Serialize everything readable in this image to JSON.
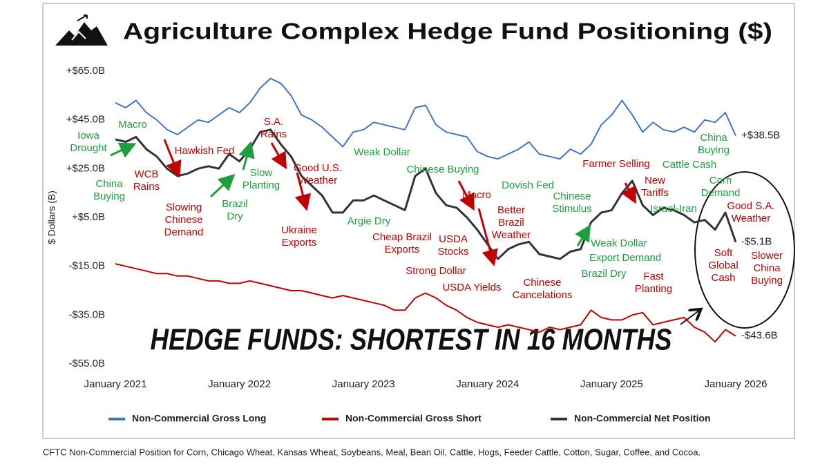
{
  "chart_data": {
    "type": "line",
    "title": "Agriculture Complex Hedge Fund Positioning ($)",
    "y_label": "$ Dollars (B)",
    "headline": "HEDGE FUNDS: SHORTEST IN 16 MONTHS",
    "footnote": "CFTC Non-Commercial Position for Corn, Chicago Wheat, Kansas Wheat, Soybeans, Meal, Bean Oil, Cattle, Hogs, Feeder Cattle, Cotton, Sugar, Coffee, and Cocoa.",
    "grid": false,
    "xlim": [
      "2021-01",
      "2026-01"
    ],
    "xticks": [
      {
        "value": "2021-01",
        "label": "January 2021"
      },
      {
        "value": "2022-01",
        "label": "January 2022"
      },
      {
        "value": "2023-01",
        "label": "January 2023"
      },
      {
        "value": "2024-01",
        "label": "January 2024"
      },
      {
        "value": "2025-01",
        "label": "January 2025"
      },
      {
        "value": "2026-01",
        "label": "January 2026"
      }
    ],
    "ylim": [
      -55,
      65
    ],
    "yticks": [
      {
        "value": 65,
        "label": "+$65.0B"
      },
      {
        "value": 45,
        "label": "+$45.0B"
      },
      {
        "value": 25,
        "label": "+$25.0B"
      },
      {
        "value": 5,
        "label": "+$5.0B"
      },
      {
        "value": -15,
        "label": "-$15.0B"
      },
      {
        "value": -35,
        "label": "-$35.0B"
      },
      {
        "value": -55,
        "label": "-$55.0B"
      }
    ],
    "x": [
      "2021-01",
      "2021-02",
      "2021-03",
      "2021-04",
      "2021-05",
      "2021-06",
      "2021-07",
      "2021-08",
      "2021-09",
      "2021-10",
      "2021-11",
      "2021-12",
      "2022-01",
      "2022-02",
      "2022-03",
      "2022-04",
      "2022-05",
      "2022-06",
      "2022-07",
      "2022-08",
      "2022-09",
      "2022-10",
      "2022-11",
      "2022-12",
      "2023-01",
      "2023-02",
      "2023-03",
      "2023-04",
      "2023-05",
      "2023-06",
      "2023-07",
      "2023-08",
      "2023-09",
      "2023-10",
      "2023-11",
      "2023-12",
      "2024-01",
      "2024-02",
      "2024-03",
      "2024-04",
      "2024-05",
      "2024-06",
      "2024-07",
      "2024-08",
      "2024-09",
      "2024-10",
      "2024-11",
      "2024-12",
      "2025-01",
      "2025-02",
      "2025-03",
      "2025-04",
      "2025-05",
      "2025-06",
      "2025-07",
      "2025-08",
      "2025-09",
      "2025-10",
      "2025-11",
      "2025-12",
      "2026-01"
    ],
    "series": [
      {
        "name": "Non-Commercial Gross Long",
        "color": "#4472c4",
        "values": [
          52,
          50,
          53,
          48,
          45,
          41,
          39,
          42,
          45,
          44,
          47,
          50,
          48,
          52,
          58,
          62,
          60,
          55,
          47,
          45,
          42,
          38,
          34,
          40,
          41,
          44,
          43,
          42,
          41,
          50,
          51,
          43,
          40,
          39,
          38,
          32,
          30,
          29,
          31,
          33,
          36,
          31,
          30,
          29,
          33,
          31,
          35,
          43,
          47,
          53,
          47,
          40,
          44,
          41,
          40,
          42,
          40,
          45,
          44,
          48,
          38.5
        ],
        "value_labels": [
          null,
          null,
          null,
          null,
          null,
          null,
          null,
          null,
          null,
          null,
          null,
          null,
          null,
          null,
          null,
          null,
          null,
          null,
          null,
          null,
          null,
          null,
          null,
          null,
          null,
          null,
          null,
          null,
          null,
          null,
          null,
          null,
          null,
          null,
          null,
          null,
          null,
          null,
          null,
          null,
          null,
          null,
          null,
          null,
          null,
          null,
          null,
          null,
          null,
          null,
          null,
          null,
          null,
          null,
          null,
          null,
          null,
          null,
          null,
          null,
          "+$38.5B"
        ]
      },
      {
        "name": "Non-Commercial Gross Short",
        "color": "#c00000",
        "values": [
          -14,
          -15,
          -16,
          -17,
          -18,
          -18,
          -19,
          -19,
          -20,
          -21,
          -21,
          -22,
          -22,
          -21,
          -22,
          -23,
          -24,
          -25,
          -25,
          -26,
          -27,
          -28,
          -27,
          -28,
          -29,
          -30,
          -31,
          -33,
          -33,
          -28,
          -26,
          -28,
          -31,
          -33,
          -36,
          -38,
          -39,
          -40,
          -39,
          -40,
          -41,
          -42,
          -40,
          -41,
          -40,
          -39,
          -33,
          -36,
          -37,
          -37,
          -35,
          -34,
          -39,
          -38,
          -37,
          -36,
          -40,
          -42,
          -46,
          -41,
          -43.6
        ],
        "value_labels": [
          null,
          null,
          null,
          null,
          null,
          null,
          null,
          null,
          null,
          null,
          null,
          null,
          null,
          null,
          null,
          null,
          null,
          null,
          null,
          null,
          null,
          null,
          null,
          null,
          null,
          null,
          null,
          null,
          null,
          null,
          null,
          null,
          null,
          null,
          null,
          null,
          null,
          null,
          null,
          null,
          null,
          null,
          null,
          null,
          null,
          null,
          null,
          null,
          null,
          null,
          null,
          null,
          null,
          null,
          null,
          null,
          null,
          null,
          null,
          null,
          "-$43.6B"
        ]
      },
      {
        "name": "Non-Commercial Net Position",
        "color": "#333333",
        "values": [
          37,
          36,
          38,
          33,
          30,
          25,
          22,
          23,
          25,
          26,
          25,
          31,
          28,
          33,
          40,
          41,
          35,
          30,
          22,
          18,
          14,
          7,
          7,
          12,
          12,
          14,
          12,
          10,
          8,
          22,
          25,
          15,
          10,
          9,
          5,
          0,
          -6,
          -12,
          -8,
          -6,
          -5,
          -10,
          -11,
          -12,
          -9,
          -8,
          3,
          7,
          8,
          15,
          20,
          10,
          6,
          9,
          8,
          6,
          3,
          4,
          0,
          7,
          -5.1
        ],
        "value_labels": [
          null,
          null,
          null,
          null,
          null,
          null,
          null,
          null,
          null,
          null,
          null,
          null,
          null,
          null,
          null,
          null,
          null,
          null,
          null,
          null,
          null,
          null,
          null,
          null,
          null,
          null,
          null,
          null,
          null,
          null,
          null,
          null,
          null,
          null,
          null,
          null,
          null,
          null,
          null,
          null,
          null,
          null,
          null,
          null,
          null,
          null,
          null,
          null,
          null,
          null,
          null,
          null,
          null,
          null,
          null,
          null,
          null,
          null,
          null,
          null,
          "-$5.1B"
        ]
      }
    ],
    "annotations": [
      {
        "lines": [
          "Iowa",
          "Drought"
        ],
        "color": "#1e9e3e"
      },
      {
        "lines": [
          "Macro"
        ],
        "color": "#1e9e3e"
      },
      {
        "lines": [
          "China",
          "Buying"
        ],
        "color": "#1e9e3e"
      },
      {
        "lines": [
          "WCB",
          "Rains"
        ],
        "color": "#c00000"
      },
      {
        "lines": [
          "Hawkish Fed"
        ],
        "color": "#c00000"
      },
      {
        "lines": [
          "Slowing",
          "Chinese",
          "Demand"
        ],
        "color": "#c00000"
      },
      {
        "lines": [
          "Brazil",
          "Dry"
        ],
        "color": "#1e9e3e"
      },
      {
        "lines": [
          "S.A.",
          "Rains"
        ],
        "color": "#c00000"
      },
      {
        "lines": [
          "Slow",
          "Planting"
        ],
        "color": "#1e9e3e"
      },
      {
        "lines": [
          "Good U.S.",
          "Weather"
        ],
        "color": "#c00000"
      },
      {
        "lines": [
          "Ukraine",
          "Exports"
        ],
        "color": "#c00000"
      },
      {
        "lines": [
          "Weak Dollar"
        ],
        "color": "#1e9e3e"
      },
      {
        "lines": [
          "Argie Dry"
        ],
        "color": "#1e9e3e"
      },
      {
        "lines": [
          "Chinese Buying"
        ],
        "color": "#1e9e3e"
      },
      {
        "lines": [
          "Cheap Brazil",
          "Exports"
        ],
        "color": "#c00000"
      },
      {
        "lines": [
          "Macro"
        ],
        "color": "#c00000"
      },
      {
        "lines": [
          "USDA",
          "Stocks"
        ],
        "color": "#c00000"
      },
      {
        "lines": [
          "Better",
          "Brazil",
          "Weather"
        ],
        "color": "#c00000"
      },
      {
        "lines": [
          "Strong Dollar"
        ],
        "color": "#c00000"
      },
      {
        "lines": [
          "USDA Yields"
        ],
        "color": "#c00000"
      },
      {
        "lines": [
          "Dovish Fed"
        ],
        "color": "#1e9e3e"
      },
      {
        "lines": [
          "Chinese",
          "Stimulus"
        ],
        "color": "#1e9e3e"
      },
      {
        "lines": [
          "Chinese",
          "Cancelations"
        ],
        "color": "#c00000"
      },
      {
        "lines": [
          "Farmer Selling"
        ],
        "color": "#c00000"
      },
      {
        "lines": [
          "Cattle Cash"
        ],
        "color": "#1e9e3e"
      },
      {
        "lines": [
          "China",
          "Buying"
        ],
        "color": "#1e9e3e"
      },
      {
        "lines": [
          "New",
          "Tariffs"
        ],
        "color": "#c00000"
      },
      {
        "lines": [
          "Corn",
          "Demand"
        ],
        "color": "#1e9e3e"
      },
      {
        "lines": [
          "Israel-Iran"
        ],
        "color": "#1e9e3e"
      },
      {
        "lines": [
          "Good S.A.",
          "Weather"
        ],
        "color": "#c00000"
      },
      {
        "lines": [
          "Weak Dollar"
        ],
        "color": "#1e9e3e"
      },
      {
        "lines": [
          "Export Demand"
        ],
        "color": "#1e9e3e"
      },
      {
        "lines": [
          "Brazil Dry"
        ],
        "color": "#1e9e3e"
      },
      {
        "lines": [
          "Fast",
          "Planting"
        ],
        "color": "#c00000"
      },
      {
        "lines": [
          "Soft",
          "Global",
          "Cash"
        ],
        "color": "#c00000"
      },
      {
        "lines": [
          "Slower",
          "China",
          "Buying"
        ],
        "color": "#c00000"
      }
    ]
  }
}
